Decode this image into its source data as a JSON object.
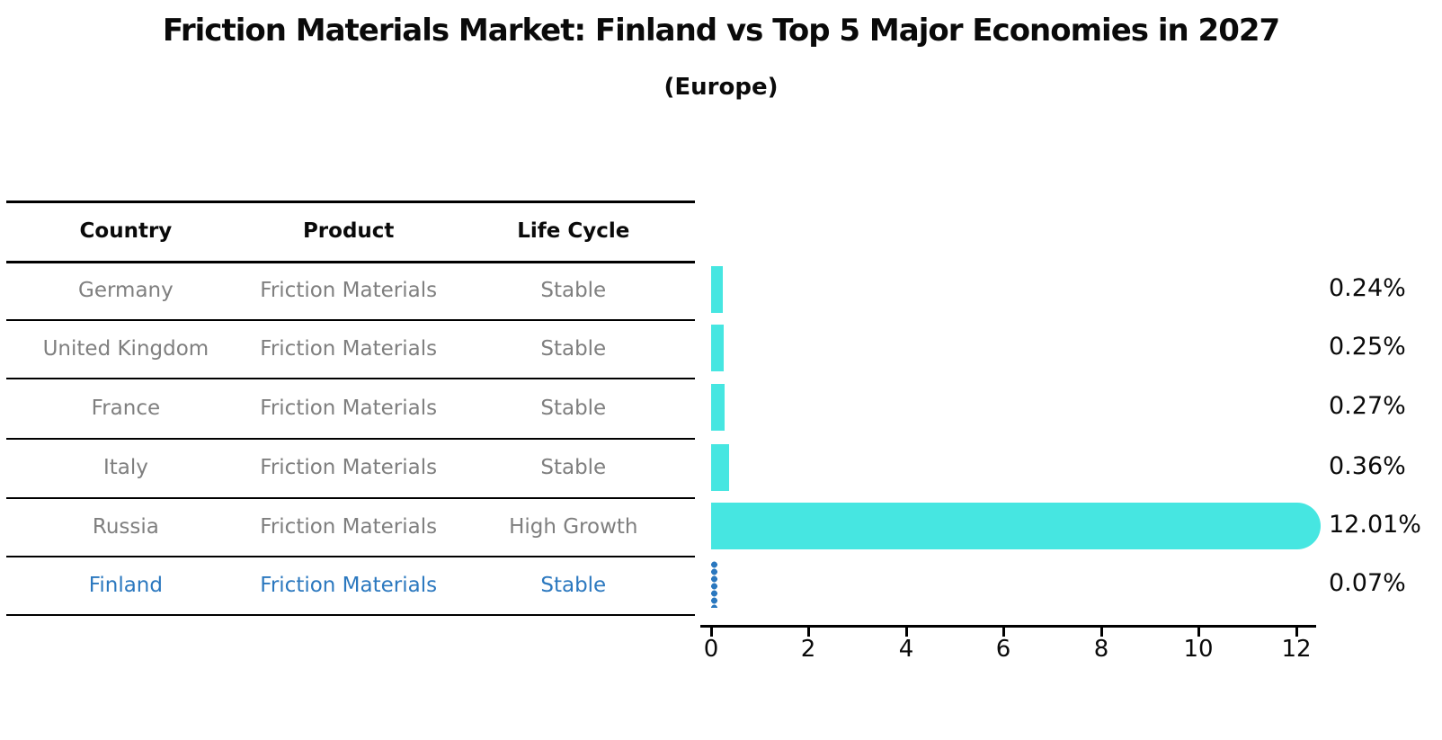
{
  "title": "Friction Materials Market: Finland vs Top 5 Major Economies in 2027",
  "subtitle": "(Europe)",
  "table": {
    "headers": [
      "Country",
      "Product",
      "Life Cycle"
    ],
    "rows": [
      {
        "country": "Germany",
        "product": "Friction Materials",
        "life_cycle": "Stable",
        "highlighted": false
      },
      {
        "country": "United Kingdom",
        "product": "Friction Materials",
        "life_cycle": "Stable",
        "highlighted": false
      },
      {
        "country": "France",
        "product": "Friction Materials",
        "life_cycle": "Stable",
        "highlighted": false
      },
      {
        "country": "Italy",
        "product": "Friction Materials",
        "life_cycle": "Stable",
        "highlighted": false
      },
      {
        "country": "Russia",
        "product": "Friction Materials",
        "life_cycle": "High Growth",
        "highlighted": false
      },
      {
        "country": "Finland",
        "product": "Friction Materials",
        "life_cycle": "Stable",
        "highlighted": true
      }
    ]
  },
  "chart_data": {
    "type": "bar",
    "orientation": "horizontal",
    "title": "Friction Materials Market: Finland vs Top 5 Major Economies in 2027",
    "subtitle": "(Europe)",
    "categories": [
      "Germany",
      "United Kingdom",
      "France",
      "Italy",
      "Russia",
      "Finland"
    ],
    "values": [
      0.24,
      0.25,
      0.27,
      0.36,
      12.01,
      0.07
    ],
    "value_labels": [
      "0.24%",
      "0.25%",
      "0.27%",
      "0.36%",
      "12.01%",
      "0.07%"
    ],
    "highlight_index": 5,
    "xlim": [
      0,
      12.6
    ],
    "x_ticks": [
      0,
      2,
      4,
      6,
      8,
      10,
      12
    ],
    "x_tick_labels": [
      "0",
      "2",
      "4",
      "6",
      "8",
      "10",
      "12"
    ],
    "grid": false,
    "legend": false,
    "colors": {
      "bar": "#46e6e1",
      "highlight_bar": "#2b78bf",
      "highlight_text": "#2b78bf",
      "table_text": "#7f7f7f",
      "text": "#0a0a0a"
    }
  }
}
